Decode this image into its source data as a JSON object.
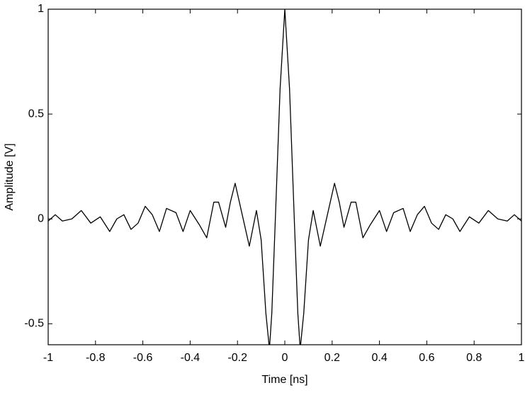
{
  "chart_data": {
    "type": "line",
    "xlabel": "Time [ns]",
    "ylabel": "Amplitude [V]",
    "x": [
      -1.0,
      -0.97,
      -0.94,
      -0.9,
      -0.86,
      -0.82,
      -0.78,
      -0.74,
      -0.71,
      -0.68,
      -0.65,
      -0.62,
      -0.59,
      -0.56,
      -0.53,
      -0.5,
      -0.46,
      -0.43,
      -0.4,
      -0.36,
      -0.33,
      -0.3,
      -0.28,
      -0.25,
      -0.23,
      -0.21,
      -0.18,
      -0.15,
      -0.12,
      -0.1,
      -0.08,
      -0.065,
      -0.055,
      -0.04,
      -0.02,
      0,
      0.02,
      0.04,
      0.055,
      0.065,
      0.08,
      0.1,
      0.12,
      0.15,
      0.18,
      0.21,
      0.23,
      0.25,
      0.28,
      0.3,
      0.33,
      0.36,
      0.4,
      0.43,
      0.46,
      0.5,
      0.53,
      0.56,
      0.59,
      0.62,
      0.65,
      0.68,
      0.71,
      0.74,
      0.78,
      0.82,
      0.86,
      0.9,
      0.94,
      0.97,
      1.0
    ],
    "series": [
      {
        "color": "#000000",
        "values": [
          -0.01,
          0.02,
          -0.01,
          0.0,
          0.04,
          -0.02,
          0.01,
          -0.06,
          0.0,
          0.02,
          -0.05,
          -0.02,
          0.06,
          0.02,
          -0.06,
          0.05,
          0.03,
          -0.06,
          0.04,
          -0.03,
          -0.09,
          0.08,
          0.08,
          -0.04,
          0.08,
          0.17,
          0.02,
          -0.13,
          0.04,
          -0.1,
          -0.45,
          -0.62,
          -0.45,
          0,
          0.62,
          1,
          0.62,
          0,
          -0.45,
          -0.62,
          -0.45,
          -0.1,
          0.04,
          -0.13,
          0.02,
          0.17,
          0.08,
          -0.04,
          0.08,
          0.08,
          -0.09,
          -0.03,
          0.04,
          -0.06,
          0.03,
          0.05,
          -0.06,
          0.02,
          0.06,
          -0.02,
          -0.05,
          0.02,
          0.0,
          -0.06,
          0.01,
          -0.02,
          0.04,
          0.0,
          -0.01,
          0.02,
          -0.01
        ]
      }
    ],
    "xlim": [
      -1,
      1
    ],
    "ylim": [
      -0.6,
      1
    ],
    "xticks": [
      -1,
      -0.8,
      -0.6,
      -0.4,
      -0.2,
      0,
      0.2,
      0.4,
      0.6,
      0.8,
      1
    ],
    "yticks": [
      -0.5,
      0,
      0.5,
      1
    ]
  }
}
